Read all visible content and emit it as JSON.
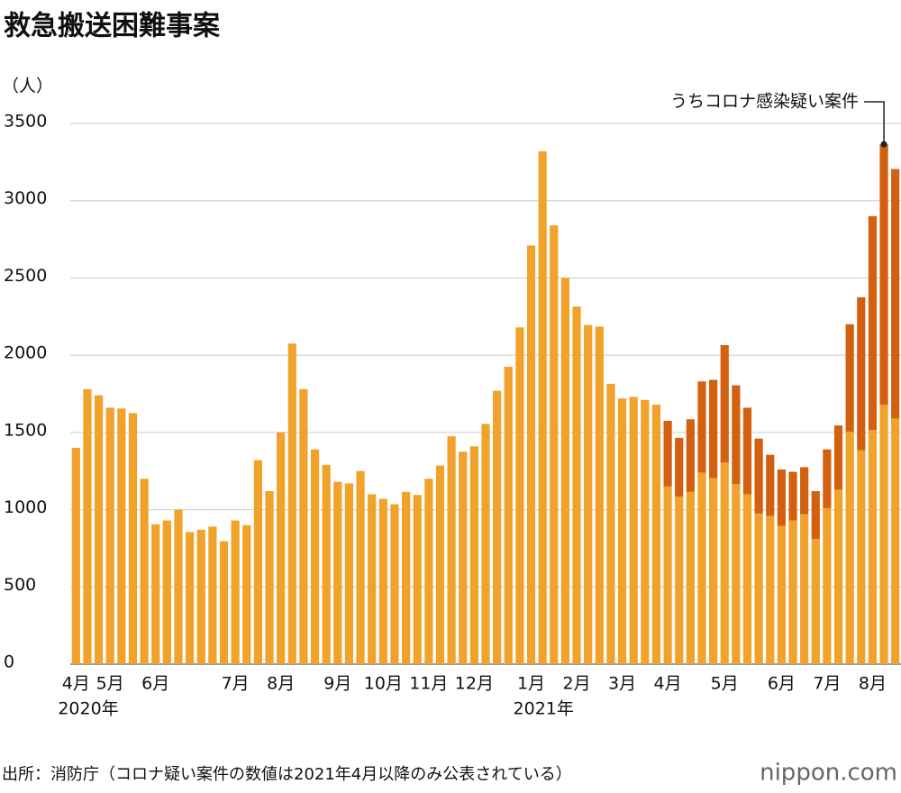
{
  "chart_data": {
    "type": "stacked-bar",
    "title": "救急搬送困難事案",
    "y_label": "（人）",
    "source": "出所：消防庁（コロナ疑い案件の数値は2021年4月以降のみ公表されている）",
    "brand": "nippon.com",
    "categories": [
      "4月",
      null,
      null,
      "5月",
      null,
      null,
      null,
      "6月",
      null,
      null,
      null,
      null,
      null,
      null,
      "7月",
      null,
      null,
      null,
      "8月",
      null,
      null,
      null,
      null,
      "9月",
      null,
      null,
      null,
      "10月",
      null,
      null,
      null,
      "11月",
      null,
      null,
      null,
      "12月",
      null,
      null,
      null,
      null,
      "1月",
      null,
      null,
      null,
      "2月",
      null,
      null,
      null,
      "3月",
      null,
      null,
      null,
      "4月",
      null,
      null,
      null,
      null,
      "5月",
      null,
      null,
      null,
      null,
      "6月",
      null,
      null,
      null,
      "7月",
      null,
      null,
      null,
      "8月",
      null,
      null
    ],
    "x_sublabels": [
      "2020年",
      null,
      null,
      null,
      null,
      null,
      null,
      null,
      null,
      null,
      null,
      null,
      null,
      null,
      null,
      null,
      null,
      null,
      null,
      null,
      null,
      null,
      null,
      null,
      null,
      null,
      null,
      null,
      null,
      null,
      null,
      null,
      null,
      null,
      null,
      null,
      null,
      null,
      null,
      null,
      "2021年",
      null,
      null,
      null,
      null,
      null,
      null,
      null,
      null,
      null,
      null,
      null,
      null,
      null,
      null,
      null,
      null,
      null,
      null,
      null,
      null,
      null,
      null,
      null,
      null,
      null,
      null,
      null,
      null,
      null,
      null,
      null,
      null
    ],
    "series": [
      {
        "color": "#f0a22a",
        "values": [
          1400,
          1780,
          1740,
          1660,
          1655,
          1625,
          1200,
          905,
          930,
          1000,
          855,
          870,
          890,
          795,
          930,
          900,
          1320,
          1120,
          1500,
          2075,
          1780,
          1390,
          1290,
          1180,
          1170,
          1250,
          1100,
          1070,
          1035,
          1115,
          1095,
          1200,
          1285,
          1475,
          1375,
          1410,
          1555,
          1770,
          1925,
          2180,
          2710,
          3320,
          2840,
          2500,
          2315,
          2195,
          2185,
          1815,
          1720,
          1730,
          1710,
          1680,
          1150,
          1085,
          1115,
          1240,
          1205,
          1305,
          1165,
          1100,
          975,
          960,
          895,
          930,
          970,
          810,
          1010,
          1130,
          1505,
          1385,
          1515,
          1680,
          1590
        ]
      },
      {
        "name": "うちコロナ感染疑い案件",
        "color": "#d2600f",
        "values": [
          null,
          null,
          null,
          null,
          null,
          null,
          null,
          null,
          null,
          null,
          null,
          null,
          null,
          null,
          null,
          null,
          null,
          null,
          null,
          null,
          null,
          null,
          null,
          null,
          null,
          null,
          null,
          null,
          null,
          null,
          null,
          null,
          null,
          null,
          null,
          null,
          null,
          null,
          null,
          null,
          null,
          null,
          null,
          null,
          null,
          null,
          null,
          null,
          null,
          null,
          null,
          null,
          425,
          380,
          470,
          590,
          635,
          760,
          640,
          560,
          485,
          395,
          365,
          315,
          305,
          310,
          380,
          415,
          695,
          990,
          1385,
          1685,
          1615
        ]
      }
    ],
    "ylim": [
      0,
      3500
    ],
    "yticks": [
      0,
      500,
      1000,
      1500,
      2000,
      2500,
      3000,
      3500
    ],
    "grid": true
  }
}
